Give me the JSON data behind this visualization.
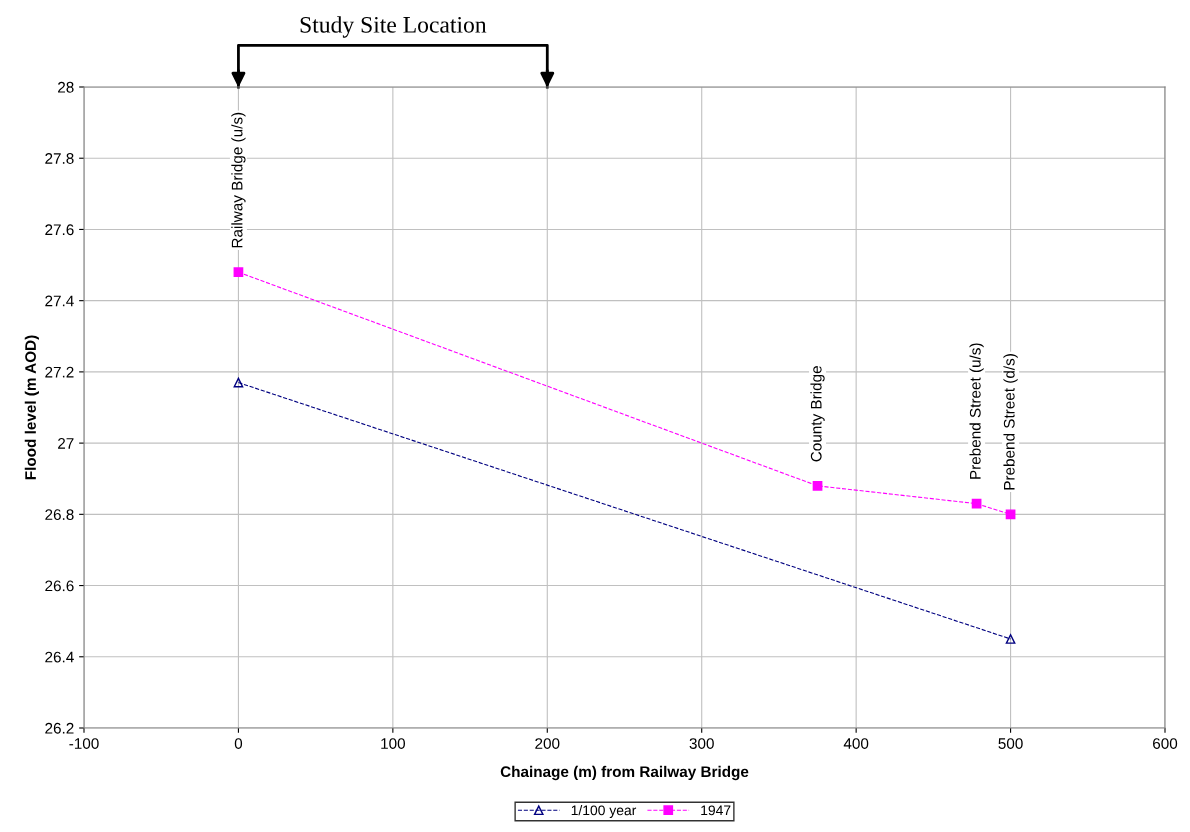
{
  "chart_data": {
    "type": "line",
    "title": "Study Site Location",
    "xlabel": "Chainage (m) from Railway Bridge",
    "ylabel": "Flood level (m AOD)",
    "series": [
      {
        "name": "1/100 year",
        "color": "#000080",
        "marker": "triangle",
        "line_style": "dashed",
        "x": [
          0,
          500
        ],
        "values": [
          27.17,
          26.45
        ]
      },
      {
        "name": "1947",
        "color": "#ff00ff",
        "marker": "square",
        "line_style": "dashed",
        "x": [
          0,
          375,
          478,
          500
        ],
        "values": [
          27.48,
          26.88,
          26.83,
          26.8
        ]
      }
    ],
    "xlim": [
      -100,
      600
    ],
    "xticks": [
      -100,
      0,
      100,
      200,
      300,
      400,
      500,
      600
    ],
    "ylim": [
      26.2,
      28
    ],
    "yticks": [
      {
        "value": 26.2,
        "label": "26.2"
      },
      {
        "value": 26.4,
        "label": "26.4"
      },
      {
        "value": 26.6,
        "label": "26.6"
      },
      {
        "value": 26.8,
        "label": "26.8"
      },
      {
        "value": 27,
        "label": "27"
      },
      {
        "value": 27.2,
        "label": "27.2"
      },
      {
        "value": 27.4,
        "label": "27.4"
      },
      {
        "value": 27.6,
        "label": "27.6"
      },
      {
        "value": 27.8,
        "label": "27.8"
      },
      {
        "value": 28,
        "label": "28"
      }
    ],
    "annotations": [
      {
        "text": "Railway Bridge (u/s)",
        "x": 0,
        "y": 27.48
      },
      {
        "text": "County Bridge",
        "x": 375,
        "y": 26.88
      },
      {
        "text": "Prebend Street (u/s)",
        "x": 478,
        "y": 26.83
      },
      {
        "text": "Prebend Street (d/s)",
        "x": 500,
        "y": 26.8
      }
    ],
    "grid": true,
    "legend": "bottom"
  }
}
